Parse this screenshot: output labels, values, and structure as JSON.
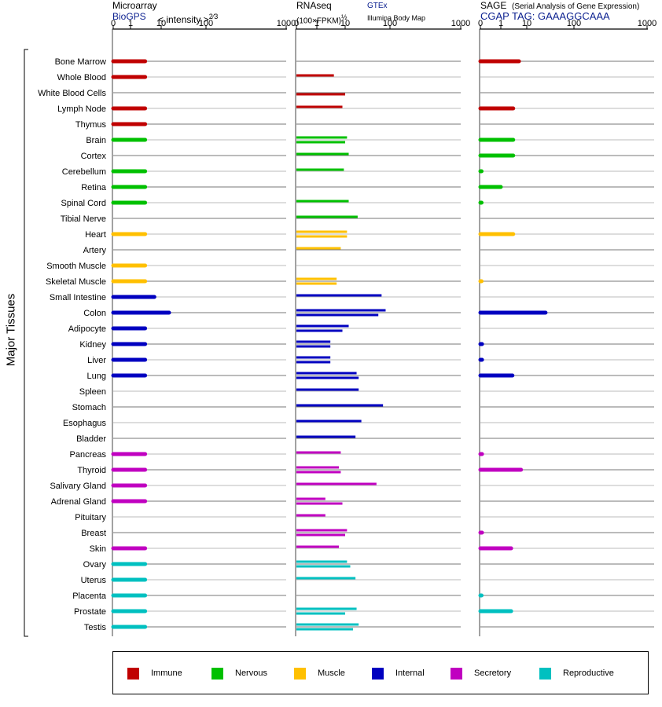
{
  "panels": {
    "microarray": {
      "title": "Microarray",
      "source": "BioGPS",
      "scale": "< intensity >",
      "exponent": "2⁄3"
    },
    "rnaseq": {
      "title": "RNAseq",
      "units": "(100×FPKM)",
      "exponent": "½",
      "source_gtex": "GTEx",
      "source_ibm": "Illumina Body Map"
    },
    "sage": {
      "title": "SAGE",
      "subtitle": "(Serial Analysis of Gene Expression)",
      "tag": "CGAP TAG: GAAAGGCAAA"
    }
  },
  "axis_label": "Major Tissues",
  "colors": {
    "Immune": "#c00000",
    "Nervous": "#00c000",
    "Muscle": "#ffc000",
    "Internal": "#0000c0",
    "Secretory": "#c000c0",
    "Reproductive": "#00c0c0"
  },
  "legend": [
    "Immune",
    "Nervous",
    "Muscle",
    "Internal",
    "Secretory",
    "Reproductive"
  ],
  "chart_data": {
    "type": "bar",
    "orientation": "horizontal",
    "x_ticks": [
      "0",
      "1",
      "10",
      "100",
      "1000"
    ],
    "x_tick_values": [
      0,
      1,
      10,
      100,
      1000
    ],
    "xlim": [
      0,
      1000
    ],
    "categories": [
      "Bone Marrow",
      "Whole Blood",
      "White Blood Cells",
      "Lymph Node",
      "Thymus",
      "Brain",
      "Cortex",
      "Cerebellum",
      "Retina",
      "Spinal Cord",
      "Tibial Nerve",
      "Heart",
      "Artery",
      "Smooth Muscle",
      "Skeletal Muscle",
      "Small Intestine",
      "Colon",
      "Adipocyte",
      "Kidney",
      "Liver",
      "Lung",
      "Spleen",
      "Stomach",
      "Esophagus",
      "Bladder",
      "Pancreas",
      "Thyroid",
      "Salivary Gland",
      "Adrenal Gland",
      "Pituitary",
      "Breast",
      "Skin",
      "Ovary",
      "Uterus",
      "Placenta",
      "Prostate",
      "Testis"
    ],
    "groups": [
      "Immune",
      "Immune",
      "Immune",
      "Immune",
      "Immune",
      "Nervous",
      "Nervous",
      "Nervous",
      "Nervous",
      "Nervous",
      "Nervous",
      "Muscle",
      "Muscle",
      "Muscle",
      "Muscle",
      "Internal",
      "Internal",
      "Internal",
      "Internal",
      "Internal",
      "Internal",
      "Internal",
      "Internal",
      "Internal",
      "Internal",
      "Secretory",
      "Secretory",
      "Secretory",
      "Secretory",
      "Secretory",
      "Secretory",
      "Secretory",
      "Reproductive",
      "Reproductive",
      "Reproductive",
      "Reproductive",
      "Reproductive"
    ],
    "series": [
      {
        "panel": "Microarray",
        "values": [
          [
            3
          ],
          [
            3
          ],
          [],
          [
            3
          ],
          [
            3
          ],
          [
            3
          ],
          [],
          [
            3
          ],
          [
            3
          ],
          [
            3
          ],
          [],
          [
            3
          ],
          [],
          [
            3
          ],
          [
            3
          ],
          [
            6
          ],
          [
            15
          ],
          [
            3
          ],
          [
            3
          ],
          [
            3
          ],
          [
            3
          ],
          [],
          [],
          [],
          [],
          [
            3
          ],
          [
            3
          ],
          [
            3
          ],
          [
            3
          ],
          [],
          [],
          [
            3
          ],
          [
            3
          ],
          [
            3
          ],
          [
            3
          ],
          [
            3
          ],
          [
            3
          ]
        ]
      },
      {
        "panel": "RNAseq",
        "values": [
          [],
          [
            4
          ],
          [
            10,
            null
          ],
          [
            8
          ],
          [],
          [
            11,
            10
          ],
          [
            12
          ],
          [
            9
          ],
          [],
          [
            12
          ],
          [
            19
          ],
          [
            11,
            11
          ],
          [
            7
          ],
          [],
          [
            5,
            5
          ],
          [
            65
          ],
          [
            80,
            55
          ],
          [
            12,
            8
          ],
          [
            3,
            3
          ],
          [
            3,
            3
          ],
          [
            18,
            20
          ],
          [
            20
          ],
          [
            70
          ],
          [
            23
          ],
          [
            17
          ],
          [
            7
          ],
          [
            6,
            7
          ],
          [
            50
          ],
          [
            2,
            8
          ],
          [
            2
          ],
          [
            11,
            10
          ],
          [
            6
          ],
          [
            11,
            13
          ],
          [
            17
          ],
          [],
          [
            18,
            10
          ],
          [
            20,
            15
          ]
        ]
      },
      {
        "panel": "SAGE",
        "values": [
          [
            5
          ],
          [],
          [],
          [
            3
          ],
          [],
          [
            3
          ],
          [
            3
          ],
          [
            0.05
          ],
          [
            1
          ],
          [
            0.05
          ],
          [],
          [
            3
          ],
          [],
          [],
          [
            0.05
          ],
          [],
          [
            25
          ],
          [],
          [
            0.08
          ],
          [
            0.08
          ],
          [
            2.8
          ],
          [],
          [],
          [],
          [],
          [
            0.08
          ],
          [
            6
          ],
          [],
          [],
          [],
          [
            0.08
          ],
          [
            2.5
          ],
          [],
          [],
          [
            0.05
          ],
          [
            2.5
          ],
          []
        ]
      }
    ]
  }
}
